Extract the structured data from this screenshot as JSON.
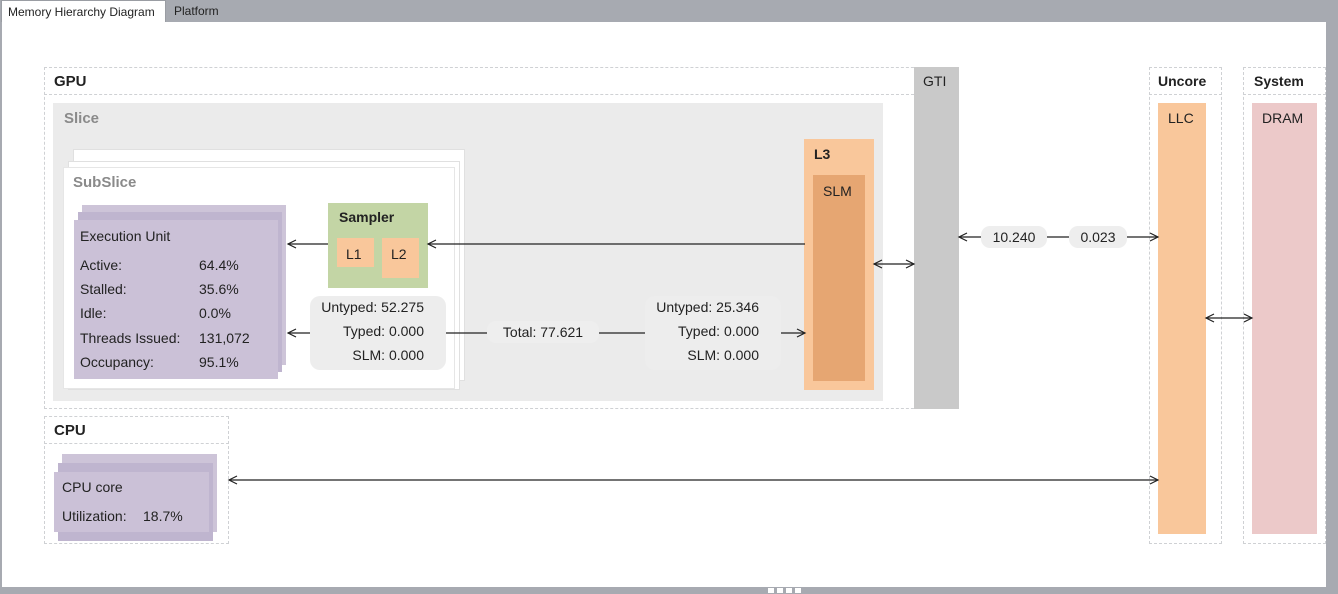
{
  "tabs": [
    {
      "label": "Memory Hierarchy Diagram",
      "active": true
    },
    {
      "label": "Platform",
      "active": false
    }
  ],
  "gpu": {
    "title": "GPU",
    "slice_title": "Slice",
    "subslice_title": "SubSlice",
    "execution_unit": {
      "title": "Execution Unit",
      "metrics": [
        {
          "label": "Active:",
          "value": "64.4%"
        },
        {
          "label": "Stalled:",
          "value": "35.6%"
        },
        {
          "label": "Idle:",
          "value": "0.0%"
        },
        {
          "label": "Threads Issued:",
          "value": "131,072"
        },
        {
          "label": "Occupancy:",
          "value": "95.1%"
        }
      ]
    },
    "sampler": {
      "title": "Sampler",
      "l1": "L1",
      "l2": "L2"
    },
    "left_traffic": [
      {
        "label": "Untyped:",
        "value": "52.275"
      },
      {
        "label": "Typed:",
        "value": "0.000"
      },
      {
        "label": "SLM:",
        "value": "0.000"
      }
    ],
    "total": "Total: 77.621",
    "right_traffic": [
      {
        "label": "Untyped:",
        "value": "25.346"
      },
      {
        "label": "Typed:",
        "value": "0.000"
      },
      {
        "label": "SLM:",
        "value": "0.000"
      }
    ],
    "l3_title": "L3",
    "slm_title": "SLM",
    "gti_title": "GTI"
  },
  "gti_bandwidth": {
    "read": "10.240",
    "write": "0.023"
  },
  "uncore": {
    "title": "Uncore",
    "llc": "LLC"
  },
  "system": {
    "title": "System",
    "dram": "DRAM"
  },
  "cpu": {
    "title": "CPU",
    "core_title": "CPU core",
    "utilization_label": "Utilization:",
    "utilization_value": "18.7%"
  },
  "colors": {
    "eu": "#cbc1d7",
    "sampler": "#c3d5a5",
    "cache_orange": "#f9c79b",
    "slm_inner": "#e6a672",
    "gti": "#c9c9c9",
    "dram": "#ecc9c9",
    "slice_bg": "#ebebeb"
  }
}
